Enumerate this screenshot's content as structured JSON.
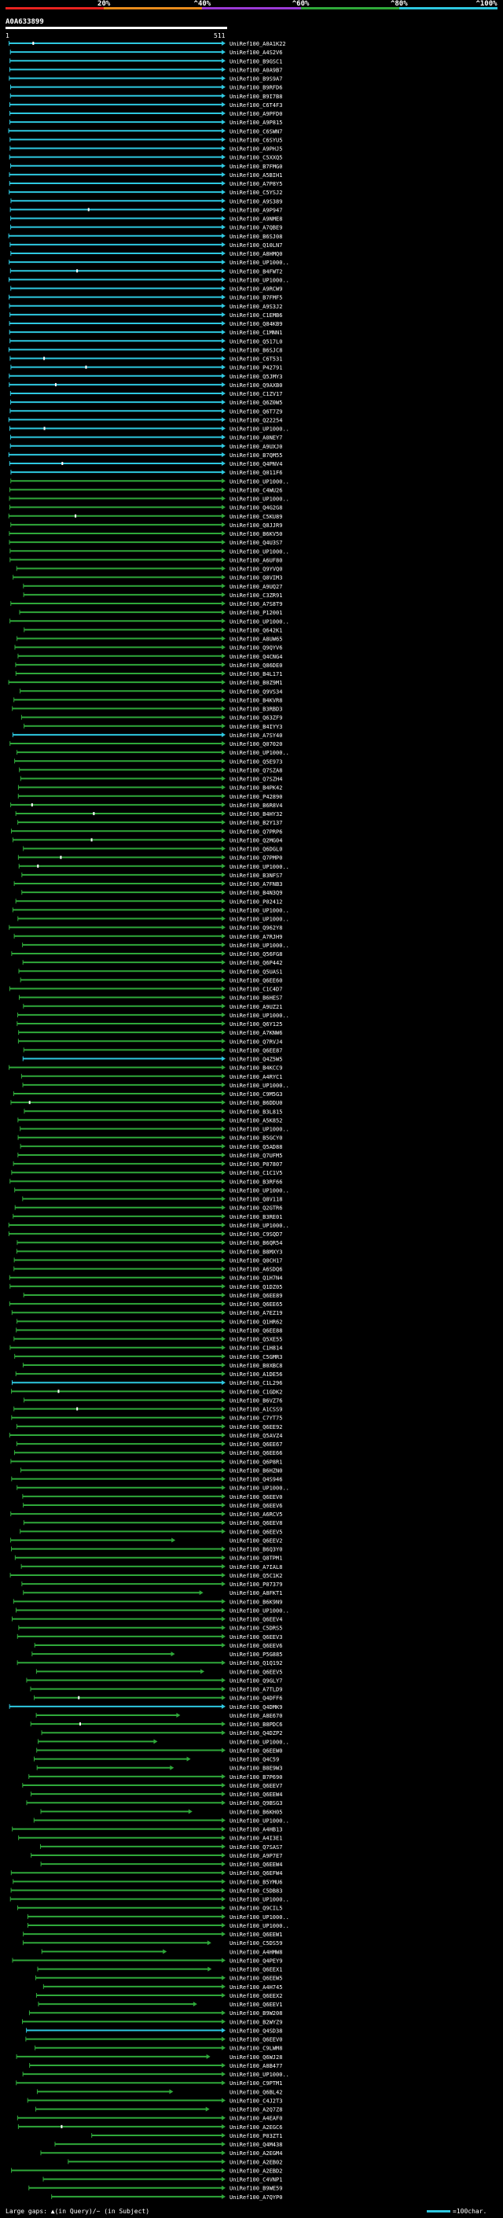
{
  "scale": {
    "labels": [
      "20%",
      "^40%",
      "^60%",
      "^80%",
      "^100%"
    ],
    "colors": [
      "#e8231f",
      "#e88b1c",
      "#9b3ad6",
      "#2fa83a",
      "#2ec8e0"
    ]
  },
  "query": {
    "id": "A0A633899",
    "start": "1",
    "end": "511"
  },
  "hits": [
    "UniRef100_A0A1K22",
    "UniRef100_A4S2V6",
    "UniRef100_B9GSC1",
    "UniRef100_A0A9B7",
    "UniRef100_B9S9A7",
    "UniRef100_B9RFD6",
    "UniRef100_B9I7B8",
    "UniRef100_C6T4F3",
    "UniRef100_A9PFD0",
    "UniRef100_A9P815",
    "UniRef100_C6SWN7",
    "UniRef100_C6SYU5",
    "UniRef100_A9PHJ5",
    "UniRef100_C5XXQ5",
    "UniRef100_B7FMG0",
    "UniRef100_A5BIH1",
    "UniRef100_A7P8Y5",
    "UniRef100_C5YSJ2",
    "UniRef100_A9S389",
    "UniRef100_A9P947",
    "UniRef100_A9NME8",
    "UniRef100_A7QBE9",
    "UniRef100_B6SJ08",
    "UniRef100_Q10LN7",
    "UniRef100_A8HMQ0",
    "UniRef100_UP1000..",
    "UniRef100_B4FWT2",
    "UniRef100_UP1000..",
    "UniRef100_A9RCW9",
    "UniRef100_B7FMF5",
    "UniRef100_A9S3J2",
    "UniRef100_C1EMB6",
    "UniRef100_Q84KB9",
    "UniRef100_C1MNN1",
    "UniRef100_Q517L0",
    "UniRef100_B6SJC8",
    "UniRef100_C6T531",
    "UniRef100_P42791",
    "UniRef100_Q5JMY3",
    "UniRef100_Q9AXB0",
    "UniRef100_C1ZV17",
    "UniRef100_Q6Z0W5",
    "UniRef100_Q6T7Z9",
    "UniRef100_Q22254",
    "UniRef100_UP1000..",
    "UniRef100_A0NEY7",
    "UniRef100_A9UXJ0",
    "UniRef100_B7QM55",
    "UniRef100_Q4PNV4",
    "UniRef100_Q011F6",
    "UniRef100_UP1000..",
    "UniRef100_C4WU26",
    "UniRef100_UP1000..",
    "UniRef100_Q4G2G8",
    "UniRef100_C5KU89",
    "UniRef100_Q8JJR9",
    "UniRef100_B6KV50",
    "UniRef100_Q4U3S7",
    "UniRef100_UP1000..",
    "UniRef100_A6UF80",
    "UniRef100_Q9YVQ0",
    "UniRef100_Q8VIM3",
    "UniRef100_A9UQ27",
    "UniRef100_C3ZR91",
    "UniRef100_A7S8T9",
    "UniRef100_P12001",
    "UniRef100_UP1000..",
    "UniRef100_Q642K1",
    "UniRef100_A8UW65",
    "UniRef100_Q9QYV6",
    "UniRef100_Q4CNG4",
    "UniRef100_Q86DE0",
    "UniRef100_B4L171",
    "UniRef100_B0Z9M1",
    "UniRef100_Q9VS34",
    "UniRef100_B4KVR8",
    "UniRef100_B3RBD3",
    "UniRef100_Q63ZF9",
    "UniRef100_B4IYY3",
    "UniRef100_A7SY40",
    "UniRef100_Q07020",
    "UniRef100_UP1000..",
    "UniRef100_Q5E973",
    "UniRef100_Q7SZA8",
    "UniRef100_Q7SZH4",
    "UniRef100_B4PK42",
    "UniRef100_P42890",
    "UniRef100_B6R8V4",
    "UniRef100_B4HY32",
    "UniRef100_B2Y137",
    "UniRef100_Q7PRP6",
    "UniRef100_Q2MG04",
    "UniRef100_Q6DGL0",
    "UniRef100_Q7PMP0",
    "UniRef100_UP1000..",
    "UniRef100_B3NFS7",
    "UniRef100_A7FNB3",
    "UniRef100_B4N3Q9",
    "UniRef100_P02412",
    "UniRef100_UP1000..",
    "UniRef100_UP1000..",
    "UniRef100_Q962Y8",
    "UniRef100_A7RJH9",
    "UniRef100_UP1000..",
    "UniRef100_Q56FG8",
    "UniRef100_Q6P442",
    "UniRef100_Q5UAS1",
    "UniRef100_Q6EE60",
    "UniRef100_C1C4D7",
    "UniRef100_B6HES7",
    "UniRef100_A9UZ21",
    "UniRef100_UP1000..",
    "UniRef100_Q6Y125",
    "UniRef100_A7KNW6",
    "UniRef100_Q7RVJ4",
    "UniRef100_Q6EE87",
    "UniRef100_Q4Z5W5",
    "UniRef100_B4KCC9",
    "UniRef100_A4RYC1",
    "UniRef100_UP1000..",
    "UniRef100_C9M5G3",
    "UniRef100_B6DDU0",
    "UniRef100_B3L815",
    "UniRef100_A5K852",
    "UniRef100_UP1000..",
    "UniRef100_B5GCY0",
    "UniRef100_Q5AD88",
    "UniRef100_Q7UFM5",
    "UniRef100_P07807",
    "UniRef100_C1C1V5",
    "UniRef100_B3RF66",
    "UniRef100_UP1000..",
    "UniRef100_Q8V118",
    "UniRef100_Q2GTR6",
    "UniRef100_B3RE01",
    "UniRef100_UP1000..",
    "UniRef100_C9SQD7",
    "UniRef100_B6QR54",
    "UniRef100_B8MXY3",
    "UniRef100_Q0CH17",
    "UniRef100_A6SDQ6",
    "UniRef100_Q1H7N4",
    "UniRef100_Q1DZ05",
    "UniRef100_Q6EE89",
    "UniRef100_Q6EE65",
    "UniRef100_A7EZ19",
    "UniRef100_Q1HR62",
    "UniRef100_Q6EE88",
    "UniRef100_Q5XE55",
    "UniRef100_C1H814",
    "UniRef100_C5GMR3",
    "UniRef100_B0XBC8",
    "UniRef100_A1DE56",
    "UniRef100_C1L296",
    "UniRef100_C1GDK2",
    "UniRef100_B6VZ76",
    "UniRef100_A1CSS9",
    "UniRef100_C7YT75",
    "UniRef100_Q6EE92",
    "UniRef100_Q5AVZ4",
    "UniRef100_Q6EE67",
    "UniRef100_Q6EE66",
    "UniRef100_Q6P8R1",
    "UniRef100_B6HZN0",
    "UniRef100_Q4S946",
    "UniRef100_UP1000..",
    "UniRef100_Q6EEV0",
    "UniRef100_Q6EEV6",
    "UniRef100_A6RCV5",
    "UniRef100_Q6EEV8",
    "UniRef100_Q6EEV5",
    "UniRef100_Q6EEV2",
    "UniRef100_B6Q3Y0",
    "UniRef100_Q8TPM1",
    "UniRef100_A7IAL8",
    "UniRef100_Q5C1K2",
    "UniRef100_P07379",
    "UniRef100_A8FKT1",
    "UniRef100_B6K9N9",
    "UniRef100_UP1000..",
    "UniRef100_Q6EEV4",
    "UniRef100_C5DRS5",
    "UniRef100_Q6EEV3",
    "UniRef100_Q6EEV6",
    "UniRef100_P5G885",
    "UniRef100_Q1Q192",
    "UniRef100_Q6EEV5",
    "UniRef100_Q9GLY7",
    "UniRef100_A7TLD9",
    "UniRef100_Q4DFF6",
    "UniRef100_Q4DMK9",
    "UniRef100_A8E670",
    "UniRef100_B8PDC6",
    "UniRef100_Q4DZP2",
    "UniRef100_UP1000..",
    "UniRef100_Q6EEW0",
    "UniRef100_Q4C59",
    "UniRef100_B8E9W3",
    "UniRef100_B7P690",
    "UniRef100_Q6EEV7",
    "UniRef100_Q6EEW4",
    "UniRef100_Q9BSG3",
    "UniRef100_B6KH05",
    "UniRef100_UP1000..",
    "UniRef100_A4HB13",
    "UniRef100_A4I3E1",
    "UniRef100_Q7SAS7",
    "UniRef100_A9P7E7",
    "UniRef100_Q6EEW4",
    "UniRef100_Q6EFW4",
    "UniRef100_B5YMU6",
    "UniRef100_C5DB83",
    "UniRef100_UP1000..",
    "UniRef100_Q9CIL5",
    "UniRef100_UP1000..",
    "UniRef100_UP1000..",
    "UniRef100_Q6EEW1",
    "UniRef100_C5DS59",
    "UniRef100_A4HMW8",
    "UniRef100_Q4PEY9",
    "UniRef100_Q6EEX1",
    "UniRef100_Q6EEW5",
    "UniRef100_A4H745",
    "UniRef100_Q6EEX2",
    "UniRef100_Q6EEV1",
    "UniRef100_B9W208",
    "UniRef100_B2WYZ9",
    "UniRef100_Q4SD38",
    "UniRef100_Q6EEV0",
    "UniRef100_C9LWM8",
    "UniRef100_Q6WJ28",
    "UniRef100_A8B477",
    "UniRef100_UP1000..",
    "UniRef100_C9PTM1",
    "UniRef100_Q6BL42",
    "UniRef100_C4J2T3",
    "UniRef100_A2Q7Z8",
    "UniRef100_A4EAF0",
    "UniRef100_A2EGC6",
    "UniRef100_P03ZT1",
    "UniRef100_Q4M438",
    "UniRef100_A2EGM4",
    "UniRef100_A2EB02",
    "UniRef100_A2EBD2",
    "UniRef100_C4VNP1",
    "UniRef100_B9WE59",
    "UniRef100_A7QYP0"
  ],
  "footer": {
    "legend": "Large gaps: ▲(in Query)/~ (in Subject)",
    "scale_label": "=100char."
  },
  "colors": {
    "background": "#000000",
    "cyan": "#2ec8e0",
    "green": "#2fa83a",
    "query": "#ffffff"
  }
}
